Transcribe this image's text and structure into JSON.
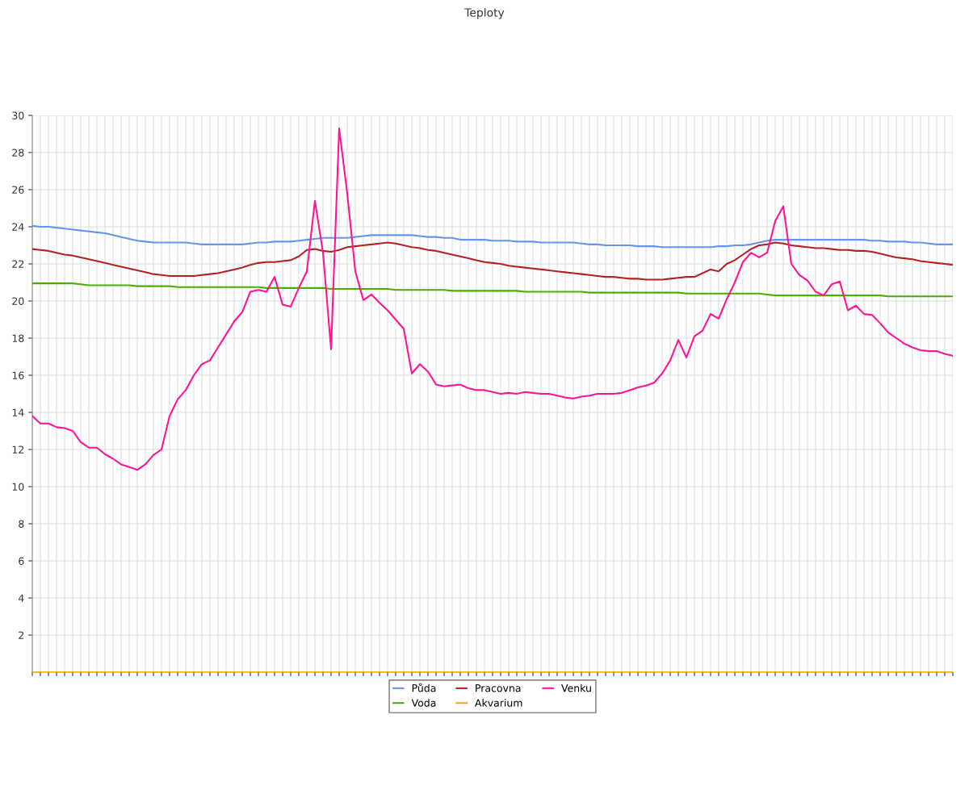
{
  "chart_data": {
    "type": "line",
    "title": "Teploty",
    "categories": [
      null,
      null,
      null,
      null,
      null,
      null,
      null,
      null,
      null,
      null,
      null,
      null,
      null,
      null,
      null,
      null,
      null,
      null,
      null,
      null,
      null,
      null,
      null,
      null,
      null,
      null,
      null,
      null,
      null,
      null,
      null,
      null,
      null,
      null,
      null,
      null,
      null,
      null,
      null,
      null,
      null,
      null,
      null,
      null,
      null,
      null,
      null,
      null,
      null,
      null,
      null,
      null,
      null,
      null,
      null,
      null,
      null,
      null,
      null,
      null,
      null,
      null,
      null,
      null,
      null,
      null,
      null,
      null,
      null,
      null,
      null,
      null,
      null,
      null,
      null,
      null,
      null,
      null,
      null,
      null,
      null,
      null,
      null,
      null,
      null,
      null,
      null,
      null,
      null,
      null,
      null,
      null,
      null,
      null,
      null,
      null,
      null,
      null,
      null,
      null,
      null,
      null,
      null,
      null,
      null,
      null,
      null,
      null,
      null,
      null,
      null,
      null,
      null,
      null,
      null
    ],
    "ylim": [
      0,
      30
    ],
    "yticks": [
      2,
      4,
      6,
      8,
      10,
      12,
      14,
      16,
      18,
      20,
      22,
      24,
      26,
      28,
      30
    ],
    "grid": true,
    "legend": "bottom",
    "marker": "none",
    "line_style": "solid",
    "series": [
      {
        "name": "Půda",
        "color": "#6495ed",
        "values": [
          24.05,
          24.0,
          24.0,
          23.95,
          23.9,
          23.85,
          23.8,
          23.75,
          23.7,
          23.65,
          23.55,
          23.45,
          23.35,
          23.25,
          23.2,
          23.15,
          23.15,
          23.15,
          23.15,
          23.15,
          23.1,
          23.05,
          23.05,
          23.05,
          23.05,
          23.05,
          23.05,
          23.1,
          23.15,
          23.15,
          23.2,
          23.2,
          23.2,
          23.25,
          23.3,
          23.35,
          23.4,
          23.4,
          23.4,
          23.4,
          23.45,
          23.5,
          23.55,
          23.55,
          23.55,
          23.55,
          23.55,
          23.55,
          23.5,
          23.45,
          23.45,
          23.4,
          23.4,
          23.3,
          23.3,
          23.3,
          23.3,
          23.25,
          23.25,
          23.25,
          23.2,
          23.2,
          23.2,
          23.15,
          23.15,
          23.15,
          23.15,
          23.15,
          23.1,
          23.05,
          23.05,
          23.0,
          23.0,
          23.0,
          23.0,
          22.95,
          22.95,
          22.95,
          22.9,
          22.9,
          22.9,
          22.9,
          22.9,
          22.9,
          22.9,
          22.95,
          22.95,
          23.0,
          23.0,
          23.05,
          23.15,
          23.25,
          23.3,
          23.3,
          23.3,
          23.3,
          23.3,
          23.3,
          23.3,
          23.3,
          23.3,
          23.3,
          23.3,
          23.3,
          23.25,
          23.25,
          23.2,
          23.2,
          23.2,
          23.15,
          23.15,
          23.1,
          23.05,
          23.05,
          23.05
        ]
      },
      {
        "name": "Voda",
        "color": "#4cae00",
        "values": [
          20.95,
          20.95,
          20.95,
          20.95,
          20.95,
          20.95,
          20.9,
          20.85,
          20.85,
          20.85,
          20.85,
          20.85,
          20.85,
          20.8,
          20.8,
          20.8,
          20.8,
          20.8,
          20.75,
          20.75,
          20.75,
          20.75,
          20.75,
          20.75,
          20.75,
          20.75,
          20.75,
          20.75,
          20.75,
          20.7,
          20.7,
          20.7,
          20.7,
          20.7,
          20.7,
          20.7,
          20.7,
          20.65,
          20.65,
          20.65,
          20.65,
          20.65,
          20.65,
          20.65,
          20.65,
          20.6,
          20.6,
          20.6,
          20.6,
          20.6,
          20.6,
          20.6,
          20.55,
          20.55,
          20.55,
          20.55,
          20.55,
          20.55,
          20.55,
          20.55,
          20.55,
          20.5,
          20.5,
          20.5,
          20.5,
          20.5,
          20.5,
          20.5,
          20.5,
          20.45,
          20.45,
          20.45,
          20.45,
          20.45,
          20.45,
          20.45,
          20.45,
          20.45,
          20.45,
          20.45,
          20.45,
          20.4,
          20.4,
          20.4,
          20.4,
          20.4,
          20.4,
          20.4,
          20.4,
          20.4,
          20.4,
          20.35,
          20.3,
          20.3,
          20.3,
          20.3,
          20.3,
          20.3,
          20.3,
          20.3,
          20.3,
          20.3,
          20.3,
          20.3,
          20.3,
          20.3,
          20.25,
          20.25,
          20.25,
          20.25,
          20.25,
          20.25,
          20.25,
          20.25,
          20.25
        ]
      },
      {
        "name": "Pracovna",
        "color": "#b22222",
        "values": [
          22.8,
          22.75,
          22.7,
          22.6,
          22.5,
          22.45,
          22.35,
          22.25,
          22.15,
          22.05,
          21.95,
          21.85,
          21.75,
          21.65,
          21.55,
          21.45,
          21.4,
          21.35,
          21.35,
          21.35,
          21.35,
          21.4,
          21.45,
          21.5,
          21.6,
          21.7,
          21.8,
          21.95,
          22.05,
          22.1,
          22.1,
          22.15,
          22.2,
          22.4,
          22.75,
          22.8,
          22.7,
          22.65,
          22.75,
          22.9,
          22.95,
          23.0,
          23.05,
          23.1,
          23.15,
          23.1,
          23.0,
          22.9,
          22.85,
          22.75,
          22.7,
          22.6,
          22.5,
          22.4,
          22.3,
          22.2,
          22.1,
          22.05,
          22.0,
          21.9,
          21.85,
          21.8,
          21.75,
          21.7,
          21.65,
          21.6,
          21.55,
          21.5,
          21.45,
          21.4,
          21.35,
          21.3,
          21.3,
          21.25,
          21.2,
          21.2,
          21.15,
          21.15,
          21.15,
          21.2,
          21.25,
          21.3,
          21.3,
          21.5,
          21.7,
          21.6,
          22.0,
          22.2,
          22.5,
          22.8,
          23.0,
          23.05,
          23.15,
          23.1,
          23.0,
          22.95,
          22.9,
          22.85,
          22.85,
          22.8,
          22.75,
          22.75,
          22.7,
          22.7,
          22.65,
          22.55,
          22.45,
          22.35,
          22.3,
          22.25,
          22.15,
          22.1,
          22.05,
          22.0,
          21.95
        ]
      },
      {
        "name": "Akvarium",
        "color": "#ffa500",
        "values": [
          0,
          0,
          0,
          0,
          0,
          0,
          0,
          0,
          0,
          0,
          0,
          0,
          0,
          0,
          0,
          0,
          0,
          0,
          0,
          0,
          0,
          0,
          0,
          0,
          0,
          0,
          0,
          0,
          0,
          0,
          0,
          0,
          0,
          0,
          0,
          0,
          0,
          0,
          0,
          0,
          0,
          0,
          0,
          0,
          0,
          0,
          0,
          0,
          0,
          0,
          0,
          0,
          0,
          0,
          0,
          0,
          0,
          0,
          0,
          0,
          0,
          0,
          0,
          0,
          0,
          0,
          0,
          0,
          0,
          0,
          0,
          0,
          0,
          0,
          0,
          0,
          0,
          0,
          0,
          0,
          0,
          0,
          0,
          0,
          0,
          0,
          0,
          0,
          0,
          0,
          0,
          0,
          0,
          0,
          0,
          0,
          0,
          0,
          0,
          0,
          0,
          0,
          0,
          0,
          0,
          0,
          0,
          0,
          0,
          0,
          0,
          0,
          0,
          0,
          0
        ]
      },
      {
        "name": "Venku",
        "color": "#ff1493",
        "values": [
          13.8,
          13.4,
          13.4,
          13.2,
          13.15,
          13.0,
          12.4,
          12.1,
          12.1,
          11.75,
          11.5,
          11.2,
          11.05,
          10.9,
          11.2,
          11.7,
          12.0,
          13.8,
          14.7,
          15.2,
          16.0,
          16.6,
          16.8,
          17.5,
          18.2,
          18.9,
          19.4,
          20.5,
          20.6,
          20.5,
          21.3,
          19.8,
          19.7,
          20.7,
          21.6,
          25.4,
          22.6,
          17.4,
          29.3,
          25.8,
          21.6,
          20.05,
          20.35,
          19.9,
          19.5,
          19.0,
          18.5,
          16.1,
          16.6,
          16.2,
          15.5,
          15.4,
          15.45,
          15.5,
          15.3,
          15.2,
          15.2,
          15.1,
          15.0,
          15.05,
          15.0,
          15.1,
          15.05,
          15.0,
          15.0,
          14.9,
          14.8,
          14.75,
          14.85,
          14.9,
          15.0,
          15.0,
          15.0,
          15.05,
          15.2,
          15.35,
          15.45,
          15.6,
          16.1,
          16.8,
          17.9,
          16.95,
          18.1,
          18.4,
          19.3,
          19.05,
          20.1,
          21.0,
          22.1,
          22.6,
          22.35,
          22.6,
          24.3,
          25.1,
          22.0,
          21.4,
          21.1,
          20.5,
          20.3,
          20.9,
          21.05,
          19.5,
          19.75,
          19.3,
          19.25,
          18.8,
          18.3,
          18.0,
          17.7,
          17.5,
          17.35,
          17.3,
          17.3,
          17.15,
          17.05
        ]
      }
    ]
  }
}
